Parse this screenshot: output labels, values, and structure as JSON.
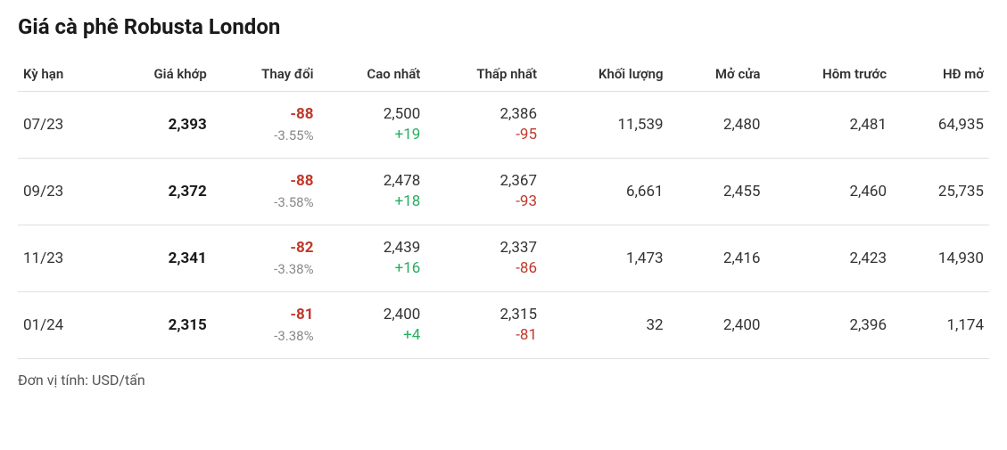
{
  "title": "Giá cà phê Robusta London",
  "unit_note": "Đơn vị tính: USD/tấn",
  "colors": {
    "text": "#222222",
    "muted": "#888888",
    "neg": "#c0392b",
    "pos": "#27ae60",
    "border": "#e0e0e0",
    "background": "#ffffff"
  },
  "columns": [
    "Kỳ hạn",
    "Giá khớp",
    "Thay đổi",
    "Cao nhất",
    "Thấp nhất",
    "Khối lượng",
    "Mở cửa",
    "Hôm trước",
    "HĐ mở"
  ],
  "rows": [
    {
      "term": "07/23",
      "price": "2,393",
      "chg_abs": "-88",
      "chg_pct": "-3.55%",
      "high": "2,500",
      "high_delta": "+19",
      "low": "2,386",
      "low_delta": "-95",
      "volume": "11,539",
      "open": "2,480",
      "prev": "2,481",
      "oi": "64,935"
    },
    {
      "term": "09/23",
      "price": "2,372",
      "chg_abs": "-88",
      "chg_pct": "-3.58%",
      "high": "2,478",
      "high_delta": "+18",
      "low": "2,367",
      "low_delta": "-93",
      "volume": "6,661",
      "open": "2,455",
      "prev": "2,460",
      "oi": "25,735"
    },
    {
      "term": "11/23",
      "price": "2,341",
      "chg_abs": "-82",
      "chg_pct": "-3.38%",
      "high": "2,439",
      "high_delta": "+16",
      "low": "2,337",
      "low_delta": "-86",
      "volume": "1,473",
      "open": "2,416",
      "prev": "2,423",
      "oi": "14,930"
    },
    {
      "term": "01/24",
      "price": "2,315",
      "chg_abs": "-81",
      "chg_pct": "-3.38%",
      "high": "2,400",
      "high_delta": "+4",
      "low": "2,315",
      "low_delta": "-81",
      "volume": "32",
      "open": "2,400",
      "prev": "2,396",
      "oi": "1,174"
    }
  ]
}
